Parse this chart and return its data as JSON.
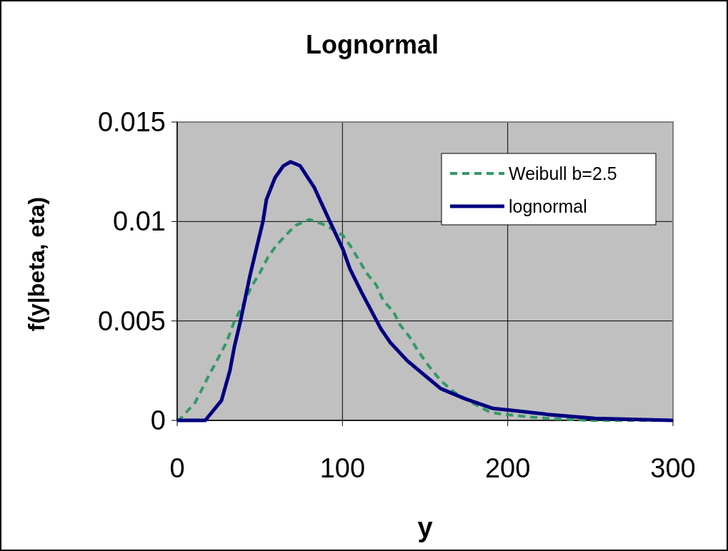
{
  "chart_data": {
    "type": "line",
    "title": "Lognormal",
    "xlabel": "y",
    "ylabel": "f(y|beta, eta)",
    "xlim": [
      0,
      300
    ],
    "ylim": [
      0,
      0.015
    ],
    "xticks": [
      0,
      100,
      200,
      300
    ],
    "yticks": [
      0,
      0.005,
      0.01,
      0.015
    ],
    "grid": true,
    "legend": "top right",
    "series": [
      {
        "name": "Weibull b=2.5",
        "color": "#339966",
        "line_style": "dashed",
        "x": [
          0,
          1,
          10.9,
          18.2,
          24.6,
          29.7,
          34.7,
          39.8,
          44.8,
          49.9,
          54.9,
          60,
          65.7,
          71.5,
          80.1,
          90.2,
          100.3,
          104.6,
          110.4,
          114.7,
          120.5,
          124.8,
          130.6,
          134.9,
          140.6,
          145.7,
          150.7,
          159.4,
          168,
          178.1,
          189.6,
          198.3,
          209.7,
          224,
          250,
          300
        ],
        "values": [
          0,
          0,
          0.0009,
          0.0021,
          0.0031,
          0.0039,
          0.005,
          0.0058,
          0.0067,
          0.0074,
          0.0082,
          0.0088,
          0.0093,
          0.0098,
          0.0101,
          0.0098,
          0.0093,
          0.0088,
          0.008,
          0.0074,
          0.0068,
          0.006,
          0.0055,
          0.0048,
          0.0042,
          0.0035,
          0.0029,
          0.002,
          0.0014,
          0.0009,
          0.0004,
          0.0003,
          0.0002,
          0.0001,
          0,
          0
        ]
      },
      {
        "name": "lognormal",
        "color": "#000080",
        "line_style": "solid",
        "x": [
          0,
          17,
          26.8,
          31.9,
          34.6,
          38.3,
          44.1,
          48.4,
          51.9,
          54,
          59.2,
          64.3,
          68.6,
          74.4,
          83,
          92.4,
          100.3,
          104.6,
          111.8,
          123.3,
          129.1,
          139.2,
          152.2,
          159.4,
          173.8,
          191.1,
          202.6,
          224.2,
          253,
          300
        ],
        "values": [
          0,
          0,
          0.001,
          0.0025,
          0.0037,
          0.005,
          0.0073,
          0.0088,
          0.01,
          0.0111,
          0.0122,
          0.0128,
          0.013,
          0.0128,
          0.0117,
          0.01,
          0.0086,
          0.0076,
          0.0064,
          0.0046,
          0.0039,
          0.003,
          0.0021,
          0.0016,
          0.0011,
          0.0006,
          0.0005,
          0.0003,
          0.0001,
          0
        ]
      }
    ]
  }
}
